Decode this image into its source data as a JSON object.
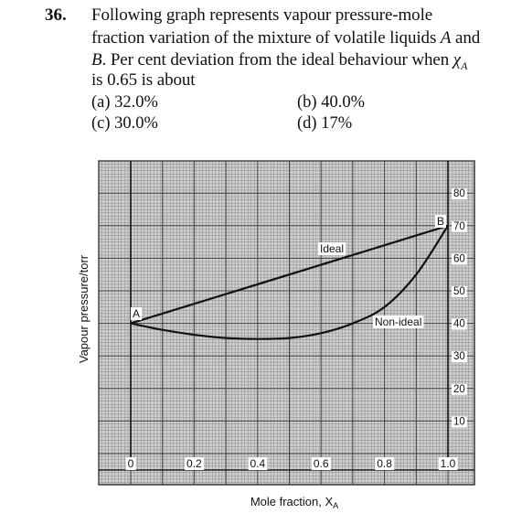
{
  "question": {
    "number": "36.",
    "lines": [
      "Following graph represents vapour pressure-mole",
      "fraction variation of the mixture of volatile liquids ",
      ". Per cent deviation from the ideal behaviour when ",
      "is 0.65 is about"
    ],
    "var_a": "A",
    "var_b": "B",
    "and_word": " and",
    "chi": "χ",
    "chi_sub": "A"
  },
  "options": {
    "a": "(a) 32.0%",
    "b": "(b) 40.0%",
    "c": "(c) 30.0%",
    "d": "(d) 17%"
  },
  "chart_data": {
    "type": "line",
    "xlabel": "Mole fraction, X",
    "xlabel_sub": "A",
    "ylabel": "Vapour pressure/torr",
    "xlim": [
      0,
      1.0
    ],
    "ylim": [
      0,
      80
    ],
    "x_ticks": [
      "0",
      "0.2",
      "0.4",
      "0.6",
      "0.8",
      "1.0"
    ],
    "y_ticks": [
      "10",
      "20",
      "30",
      "40",
      "50",
      "60",
      "70",
      "80"
    ],
    "point_labels": {
      "start": "A",
      "end": "B"
    },
    "series": [
      {
        "name": "Ideal",
        "x": [
          0,
          1.0
        ],
        "y": [
          40,
          70
        ]
      },
      {
        "name": "Non-ideal",
        "x": [
          0,
          0.1,
          0.2,
          0.3,
          0.4,
          0.5,
          0.6,
          0.7,
          0.8,
          0.9,
          1.0
        ],
        "y": [
          40,
          38,
          36.5,
          35.5,
          35.2,
          35.5,
          37,
          40,
          45,
          55,
          70
        ]
      }
    ],
    "grid": true,
    "colors": {
      "grid": "#777777",
      "line": "#111111",
      "frame_bg": "#cfcfcf"
    }
  }
}
